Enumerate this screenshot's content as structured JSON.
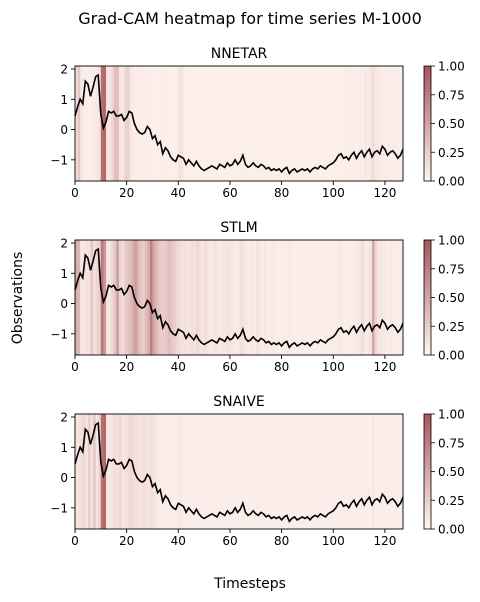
{
  "figure": {
    "suptitle": "Grad-CAM heatmap for time series M-1000",
    "ylabel": "Observations",
    "xlabel": "Timesteps"
  },
  "colors": {
    "line": "#000000",
    "heat_low": "#fff5f0",
    "heat_high": "#a8585c"
  },
  "chart_data": [
    {
      "type": "heatmap",
      "title": "NNETAR",
      "xlim": [
        0,
        127
      ],
      "ylim": [
        -1.7,
        2.1
      ],
      "xticks": [
        0,
        20,
        40,
        60,
        80,
        100,
        120
      ],
      "yticks": [
        -1,
        0,
        1,
        2
      ],
      "colorbar": {
        "range": [
          0,
          1
        ],
        "ticks": [
          "0.00",
          "0.25",
          "0.50",
          "0.75",
          "1.00"
        ]
      },
      "heat": [
        0.15,
        0.3,
        0.08,
        0.05,
        0.05,
        0.04,
        0.05,
        0.06,
        0.08,
        0.12,
        0.85,
        0.9,
        0.1,
        0.1,
        0.2,
        0.35,
        0.35,
        0.1,
        0.08,
        0.2,
        0.25,
        0.1,
        0.06,
        0.05,
        0.05,
        0.06,
        0.05,
        0.04,
        0.05,
        0.05,
        0.04,
        0.04,
        0.05,
        0.05,
        0.04,
        0.04,
        0.04,
        0.04,
        0.04,
        0.05,
        0.12,
        0.1,
        0.05,
        0.04,
        0.04,
        0.04,
        0.04,
        0.04,
        0.04,
        0.04,
        0.04,
        0.04,
        0.04,
        0.04,
        0.04,
        0.04,
        0.04,
        0.04,
        0.04,
        0.04,
        0.04,
        0.04,
        0.04,
        0.04,
        0.04,
        0.04,
        0.04,
        0.04,
        0.04,
        0.04,
        0.04,
        0.04,
        0.04,
        0.04,
        0.04,
        0.04,
        0.04,
        0.04,
        0.04,
        0.04,
        0.04,
        0.04,
        0.04,
        0.04,
        0.04,
        0.04,
        0.04,
        0.04,
        0.04,
        0.04,
        0.04,
        0.04,
        0.04,
        0.04,
        0.04,
        0.04,
        0.04,
        0.04,
        0.04,
        0.04,
        0.04,
        0.04,
        0.04,
        0.04,
        0.04,
        0.05,
        0.06,
        0.05,
        0.04,
        0.05,
        0.06,
        0.05,
        0.08,
        0.06,
        0.1,
        0.15,
        0.08,
        0.08,
        0.06,
        0.05,
        0.06,
        0.05,
        0.06,
        0.06,
        0.05,
        0.04,
        0.04,
        0.04
      ]
    },
    {
      "type": "heatmap",
      "title": "STLM",
      "xlim": [
        0,
        127
      ],
      "ylim": [
        -1.7,
        2.1
      ],
      "xticks": [
        0,
        20,
        40,
        60,
        80,
        100,
        120
      ],
      "yticks": [
        -1,
        0,
        1,
        2
      ],
      "colorbar": {
        "range": [
          0,
          1
        ],
        "ticks": [
          "0.00",
          "0.25",
          "0.50",
          "0.75",
          "1.00"
        ]
      },
      "heat": [
        0.45,
        0.4,
        0.08,
        0.1,
        0.12,
        0.1,
        0.3,
        0.12,
        0.2,
        0.25,
        0.8,
        0.6,
        0.1,
        0.1,
        0.2,
        0.3,
        0.55,
        0.2,
        0.15,
        0.25,
        0.3,
        0.35,
        0.45,
        0.55,
        0.4,
        0.3,
        0.25,
        0.35,
        0.45,
        0.75,
        0.5,
        0.4,
        0.3,
        0.25,
        0.25,
        0.3,
        0.35,
        0.3,
        0.25,
        0.2,
        0.15,
        0.12,
        0.12,
        0.1,
        0.12,
        0.15,
        0.12,
        0.2,
        0.12,
        0.1,
        0.15,
        0.1,
        0.08,
        0.08,
        0.12,
        0.08,
        0.08,
        0.1,
        0.08,
        0.12,
        0.1,
        0.08,
        0.06,
        0.08,
        0.15,
        0.1,
        0.08,
        0.06,
        0.08,
        0.06,
        0.12,
        0.08,
        0.06,
        0.08,
        0.06,
        0.05,
        0.08,
        0.06,
        0.05,
        0.05,
        0.06,
        0.05,
        0.08,
        0.06,
        0.05,
        0.05,
        0.06,
        0.05,
        0.05,
        0.06,
        0.05,
        0.06,
        0.05,
        0.06,
        0.05,
        0.05,
        0.06,
        0.05,
        0.05,
        0.06,
        0.05,
        0.06,
        0.08,
        0.06,
        0.05,
        0.06,
        0.06,
        0.05,
        0.06,
        0.08,
        0.1,
        0.15,
        0.06,
        0.08,
        0.12,
        0.5,
        0.2,
        0.1,
        0.1,
        0.08,
        0.06,
        0.05,
        0.08,
        0.06,
        0.05,
        0.06,
        0.05,
        0.05
      ]
    },
    {
      "type": "heatmap",
      "title": "SNAIVE",
      "xlim": [
        0,
        127
      ],
      "ylim": [
        -1.7,
        2.1
      ],
      "xticks": [
        0,
        20,
        40,
        60,
        80,
        100,
        120
      ],
      "yticks": [
        -1,
        0,
        1,
        2
      ],
      "colorbar": {
        "range": [
          0,
          1
        ],
        "ticks": [
          "0.00",
          "0.25",
          "0.50",
          "0.75",
          "1.00"
        ]
      },
      "heat": [
        0.1,
        0.12,
        0.15,
        0.2,
        0.1,
        0.25,
        0.12,
        0.3,
        0.1,
        0.2,
        0.85,
        0.9,
        0.1,
        0.08,
        0.12,
        0.15,
        0.12,
        0.2,
        0.1,
        0.12,
        0.15,
        0.18,
        0.15,
        0.12,
        0.12,
        0.1,
        0.15,
        0.12,
        0.1,
        0.15,
        0.12,
        0.08,
        0.06,
        0.06,
        0.05,
        0.05,
        0.06,
        0.05,
        0.05,
        0.06,
        0.08,
        0.06,
        0.05,
        0.05,
        0.05,
        0.05,
        0.05,
        0.05,
        0.05,
        0.05,
        0.05,
        0.05,
        0.05,
        0.05,
        0.05,
        0.05,
        0.05,
        0.05,
        0.05,
        0.05,
        0.05,
        0.05,
        0.05,
        0.05,
        0.06,
        0.05,
        0.05,
        0.05,
        0.05,
        0.05,
        0.05,
        0.05,
        0.05,
        0.05,
        0.05,
        0.05,
        0.05,
        0.05,
        0.05,
        0.05,
        0.05,
        0.05,
        0.05,
        0.05,
        0.05,
        0.05,
        0.05,
        0.05,
        0.05,
        0.05,
        0.05,
        0.05,
        0.05,
        0.05,
        0.05,
        0.05,
        0.05,
        0.05,
        0.05,
        0.05,
        0.05,
        0.05,
        0.05,
        0.05,
        0.05,
        0.05,
        0.05,
        0.05,
        0.05,
        0.05,
        0.05,
        0.05,
        0.05,
        0.05,
        0.05,
        0.08,
        0.05,
        0.05,
        0.05,
        0.05,
        0.05,
        0.05,
        0.05,
        0.05,
        0.05,
        0.05,
        0.05,
        0.05
      ]
    }
  ],
  "series_y": [
    0.45,
    0.75,
    1.0,
    0.85,
    1.6,
    1.5,
    1.1,
    1.4,
    1.75,
    1.8,
    0.5,
    0.05,
    0.25,
    0.6,
    0.55,
    0.6,
    0.45,
    0.45,
    0.5,
    0.3,
    0.4,
    0.6,
    0.55,
    0.2,
    0.0,
    -0.1,
    -0.15,
    -0.1,
    0.1,
    0.0,
    -0.3,
    -0.2,
    -0.5,
    -0.4,
    -0.8,
    -0.6,
    -0.7,
    -0.9,
    -1.0,
    -1.05,
    -0.85,
    -0.9,
    -0.95,
    -1.15,
    -1.0,
    -1.1,
    -1.2,
    -1.05,
    -1.2,
    -1.3,
    -1.35,
    -1.3,
    -1.25,
    -1.2,
    -1.25,
    -1.3,
    -1.15,
    -1.2,
    -1.25,
    -1.1,
    -1.2,
    -1.15,
    -1.0,
    -1.15,
    -1.05,
    -0.85,
    -1.15,
    -1.25,
    -1.2,
    -1.1,
    -1.2,
    -1.25,
    -1.15,
    -1.2,
    -1.3,
    -1.25,
    -1.35,
    -1.3,
    -1.35,
    -1.3,
    -1.4,
    -1.3,
    -1.25,
    -1.45,
    -1.35,
    -1.3,
    -1.4,
    -1.35,
    -1.3,
    -1.35,
    -1.3,
    -1.4,
    -1.3,
    -1.25,
    -1.3,
    -1.2,
    -1.25,
    -1.3,
    -1.2,
    -1.15,
    -1.1,
    -1.0,
    -0.85,
    -0.8,
    -0.95,
    -0.9,
    -1.0,
    -0.85,
    -0.75,
    -0.95,
    -0.8,
    -0.7,
    -0.9,
    -0.75,
    -0.65,
    -0.9,
    -0.75,
    -0.7,
    -0.8,
    -0.55,
    -0.65,
    -0.85,
    -0.75,
    -0.7,
    -0.8,
    -0.95,
    -0.85,
    -0.65
  ]
}
